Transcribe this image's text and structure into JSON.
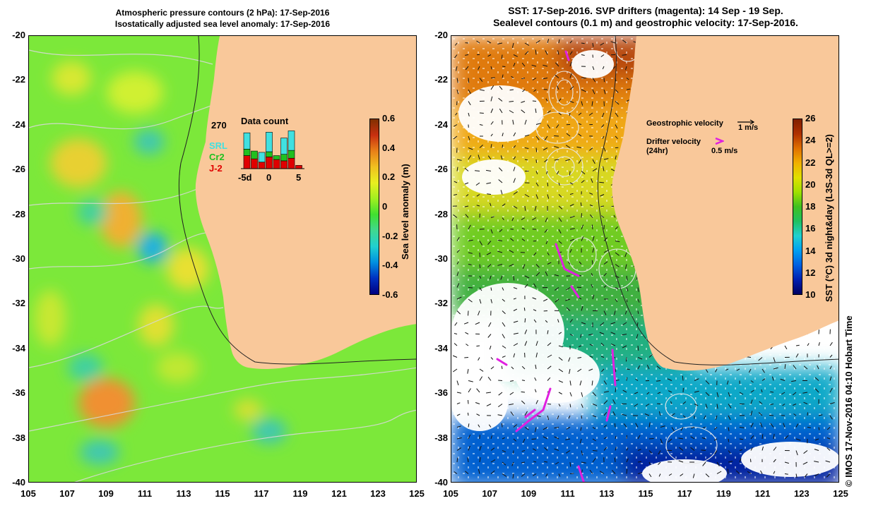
{
  "left_panel": {
    "title_line1": "Atmospheric pressure contours (2 hPa): 17-Sep-2016",
    "title_line2": "Isostatically adjusted sea level anomaly: 17-Sep-2016",
    "colorbar": {
      "title": "Sea level anomaly (m)",
      "ticks": [
        "0.6",
        "0.4",
        "0.2",
        "0",
        "-0.2",
        "-0.4",
        "-0.6"
      ],
      "range": [
        -0.6,
        0.6
      ],
      "colors": [
        "#000080",
        "#0030c0",
        "#0090e0",
        "#20d0d0",
        "#40d890",
        "#40e030",
        "#a0f020",
        "#e8f020",
        "#f0c020",
        "#e88018",
        "#c83010",
        "#803000"
      ]
    },
    "inset": {
      "count_label": "270",
      "title": "Data count",
      "series": [
        {
          "name": "SRL",
          "color": "#40e0e0"
        },
        {
          "name": "Cr2",
          "color": "#20c020"
        },
        {
          "name": "J-2",
          "color": "#e00000"
        }
      ],
      "x_ticks": [
        "-5d",
        "0",
        "5"
      ],
      "bars": [
        {
          "j2": 20,
          "cr2": 10,
          "srl": 25
        },
        {
          "j2": 15,
          "cr2": 12,
          "srl": 0
        },
        {
          "j2": 10,
          "cr2": 0,
          "srl": 15
        },
        {
          "j2": 18,
          "cr2": 8,
          "srl": 30
        },
        {
          "j2": 14,
          "cr2": 6,
          "srl": 0
        },
        {
          "j2": 12,
          "cr2": 10,
          "srl": 25
        },
        {
          "j2": 16,
          "cr2": 12,
          "srl": 30
        },
        {
          "j2": 5,
          "cr2": 0,
          "srl": 0
        }
      ]
    }
  },
  "right_panel": {
    "title_line1": "SST: 17-Sep-2016. SVP drifters (magenta): 14 Sep - 19 Sep.",
    "title_line2": "Sealevel contours (0.1 m) and geostrophic velocity: 17-Sep-2016.",
    "colorbar": {
      "title": "SST (°C) 3d night&day (L3S-3d QL>=2)",
      "ticks": [
        "26",
        "24",
        "22",
        "20",
        "18",
        "16",
        "14",
        "12",
        "10"
      ],
      "range": [
        10,
        26
      ],
      "colors": [
        "#000060",
        "#0020b0",
        "#0060e0",
        "#00a0f0",
        "#20d0d0",
        "#20c060",
        "#40c020",
        "#a0e000",
        "#e0e000",
        "#f0b000",
        "#e07000",
        "#b03000",
        "#802000"
      ]
    },
    "legend": {
      "geostrophic_label": "Geostrophic velocity",
      "geostrophic_scale": "1 m/s",
      "drifter_label": "Drifter velocity",
      "drifter_sub": "(24hr)",
      "drifter_scale": "0.5 m/s"
    }
  },
  "axes": {
    "y_ticks": [
      "-20",
      "-22",
      "-24",
      "-26",
      "-28",
      "-30",
      "-32",
      "-34",
      "-36",
      "-38",
      "-40"
    ],
    "x_ticks": [
      "105",
      "107",
      "109",
      "111",
      "113",
      "115",
      "117",
      "119",
      "121",
      "123",
      "125"
    ],
    "lon_range": [
      105,
      125
    ],
    "lat_range": [
      -20,
      -40
    ]
  },
  "credit": "© IMOS 17-Nov-2016 04:10 Hobart Time",
  "colors": {
    "land": "#f9c89a",
    "drifter": "#e020e0",
    "contour": "#d8d8d8"
  }
}
